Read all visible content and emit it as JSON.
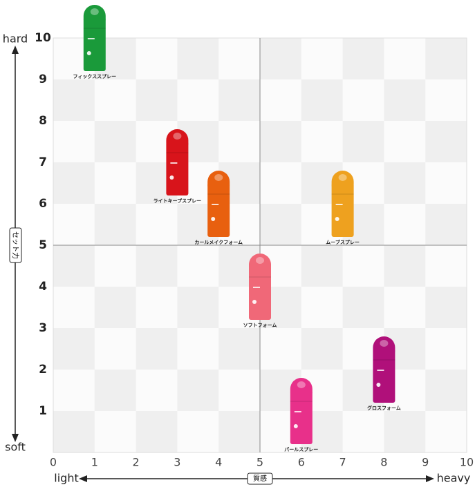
{
  "chart_data": {
    "type": "scatter",
    "x_axis": {
      "title": "質感",
      "low": "light",
      "high": "heavy"
    },
    "y_axis": {
      "title": "セット力",
      "low": "soft",
      "high": "hard"
    },
    "xlim": [
      0,
      10
    ],
    "ylim": [
      0,
      10
    ],
    "xticks": [
      0,
      1,
      2,
      3,
      4,
      5,
      6,
      7,
      8,
      9,
      10
    ],
    "yticks": [
      1,
      2,
      3,
      4,
      5,
      6,
      7,
      8,
      9,
      10
    ],
    "dividers": {
      "x": 5,
      "y": 5
    },
    "points": [
      {
        "name": "フィックススプレー",
        "color": "#1a9a3a",
        "x": 1,
        "y": 10
      },
      {
        "name": "ライトキープスプレー",
        "color": "#d8141b",
        "x": 3,
        "y": 7
      },
      {
        "name": "カールメイクフォーム",
        "color": "#e8600f",
        "x": 4,
        "y": 6
      },
      {
        "name": "ムーブスプレー",
        "color": "#eea11f",
        "x": 7,
        "y": 6
      },
      {
        "name": "ソフトフォーム",
        "color": "#f06878",
        "x": 5,
        "y": 4
      },
      {
        "name": "グロスフォーム",
        "color": "#b0107a",
        "x": 8,
        "y": 2
      },
      {
        "name": "パールスプレー",
        "color": "#e8308a",
        "x": 6,
        "y": 1
      }
    ]
  }
}
